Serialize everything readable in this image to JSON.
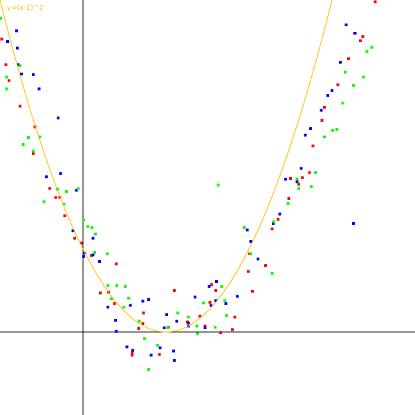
{
  "chart_data": {
    "type": "scatter",
    "xlim": [
      -1,
      4
    ],
    "ylim": [
      -1,
      4
    ],
    "grid": false,
    "curve": {
      "label": "y=(x-1)^2",
      "color": "#ffbf00",
      "x_range": [
        -1,
        4
      ]
    },
    "series": [
      {
        "color": "#ff0000",
        "points": [
          [
            -0.98,
            3.53
          ],
          [
            -0.93,
            3.22
          ],
          [
            -0.89,
            3.03
          ],
          [
            -0.76,
            2.72
          ],
          [
            -0.6,
            2.15
          ],
          [
            -0.58,
            2.47
          ],
          [
            -0.4,
            1.73
          ],
          [
            -0.33,
            1.62
          ],
          [
            -0.28,
            1.62
          ],
          [
            -0.22,
            1.4
          ],
          [
            -0.1,
            1.13
          ],
          [
            -0.02,
            1.07
          ],
          [
            0.1,
            0.92
          ],
          [
            0.21,
            0.47
          ],
          [
            0.31,
            0.48
          ],
          [
            0.38,
            0.34
          ],
          [
            0.4,
            0.82
          ],
          [
            0.59,
            -0.25
          ],
          [
            0.59,
            -0.28
          ],
          [
            0.67,
            0.04
          ],
          [
            0.72,
            0.1
          ],
          [
            0.73,
            0.23
          ],
          [
            0.92,
            -0.27
          ],
          [
            1.03,
            0.06
          ],
          [
            1.1,
            0.5
          ],
          [
            1.26,
            0.12
          ],
          [
            1.41,
            0.19
          ],
          [
            1.47,
            0.07
          ],
          [
            1.53,
            0.36
          ],
          [
            1.55,
            0.57
          ],
          [
            1.6,
            0.5
          ],
          [
            1.66,
            -0.01
          ],
          [
            1.8,
            0.03
          ],
          [
            1.83,
            0.18
          ],
          [
            1.99,
            0.73
          ],
          [
            2.01,
            0.94
          ],
          [
            2.04,
            0.49
          ],
          [
            2.2,
            0.8
          ],
          [
            2.28,
            1.24
          ],
          [
            2.35,
            1.36
          ],
          [
            2.48,
            1.61
          ],
          [
            2.5,
            1.85
          ],
          [
            2.6,
            1.78
          ],
          [
            2.64,
            1.86
          ],
          [
            2.73,
            1.92
          ],
          [
            2.77,
            2.24
          ],
          [
            2.88,
            2.55
          ],
          [
            2.91,
            2.71
          ],
          [
            3.07,
            2.98
          ],
          [
            3.2,
            3.29
          ],
          [
            3.27,
            3.6
          ],
          [
            3.34,
            3.51
          ],
          [
            3.37,
            3.56
          ],
          [
            3.52,
            3.98
          ]
        ]
      },
      {
        "color": "#0000ff",
        "points": [
          [
            -0.91,
            3.5
          ],
          [
            -0.8,
            3.63
          ],
          [
            -0.79,
            3.42
          ],
          [
            -0.78,
            3.22
          ],
          [
            -0.74,
            3.11
          ],
          [
            -0.6,
            3.1
          ],
          [
            -0.53,
            2.93
          ],
          [
            -0.44,
            1.87
          ],
          [
            -0.3,
            2.58
          ],
          [
            -0.27,
            1.91
          ],
          [
            -0.12,
            1.22
          ],
          [
            -0.08,
            1.71
          ],
          [
            0.02,
            0.95
          ],
          [
            0.01,
            0.91
          ],
          [
            0.12,
            1.13
          ],
          [
            0.12,
            0.93
          ],
          [
            0.2,
            0.85
          ],
          [
            0.3,
            0.3
          ],
          [
            0.39,
            0.14
          ],
          [
            0.4,
            0.01
          ],
          [
            0.53,
            -0.18
          ],
          [
            0.57,
            0.32
          ],
          [
            0.6,
            -0.22
          ],
          [
            0.72,
            0.37
          ],
          [
            0.79,
            0.39
          ],
          [
            0.82,
            -0.28
          ],
          [
            0.93,
            -0.19
          ],
          [
            0.98,
            0.05
          ],
          [
            1.01,
            0.21
          ],
          [
            1.09,
            -0.23
          ],
          [
            1.1,
            -0.34
          ],
          [
            1.13,
            0.13
          ],
          [
            1.27,
            0.07
          ],
          [
            1.27,
            0.11
          ],
          [
            1.35,
            0.42
          ],
          [
            1.47,
            0.05
          ],
          [
            1.52,
            0.55
          ],
          [
            1.54,
            0.32
          ],
          [
            1.6,
            0.38
          ],
          [
            1.61,
            0.61
          ],
          [
            1.72,
            0.34
          ],
          [
            1.86,
            0.43
          ],
          [
            1.98,
            1.23
          ],
          [
            2.02,
            1.09
          ],
          [
            2.11,
            0.88
          ],
          [
            2.29,
            1.31
          ],
          [
            2.37,
            1.42
          ],
          [
            2.44,
            1.84
          ],
          [
            2.58,
            1.81
          ],
          [
            2.63,
            1.97
          ],
          [
            2.68,
            2.37
          ],
          [
            2.74,
            2.45
          ],
          [
            2.87,
            2.67
          ],
          [
            2.95,
            2.85
          ],
          [
            3.0,
            2.91
          ],
          [
            3.1,
            3.25
          ],
          [
            3.17,
            3.7
          ],
          [
            3.28,
            3.6
          ],
          [
            3.26,
            1.31
          ]
        ]
      },
      {
        "color": "#00ff00",
        "points": [
          [
            -0.99,
            3.78
          ],
          [
            -0.92,
            2.93
          ],
          [
            -0.92,
            3.07
          ],
          [
            -0.76,
            3.21
          ],
          [
            -0.72,
            2.26
          ],
          [
            -0.66,
            2.34
          ],
          [
            -0.6,
            2.18
          ],
          [
            -0.52,
            2.35
          ],
          [
            -0.47,
            1.57
          ],
          [
            -0.31,
            1.72
          ],
          [
            -0.23,
            1.54
          ],
          [
            -0.2,
            1.69
          ],
          [
            -0.06,
            1.73
          ],
          [
            0.01,
            1.35
          ],
          [
            0.06,
            1.27
          ],
          [
            0.11,
            1.26
          ],
          [
            0.14,
            0.96
          ],
          [
            0.15,
            1.18
          ],
          [
            0.29,
            0.94
          ],
          [
            0.3,
            0.56
          ],
          [
            0.34,
            0.4
          ],
          [
            0.41,
            0.56
          ],
          [
            0.49,
            0.3
          ],
          [
            0.51,
            0.55
          ],
          [
            0.55,
            0.41
          ],
          [
            0.68,
            0.13
          ],
          [
            0.74,
            -0.08
          ],
          [
            0.79,
            -0.45
          ],
          [
            0.9,
            -0.16
          ],
          [
            1.02,
            0.05
          ],
          [
            1.14,
            0.23
          ],
          [
            1.27,
            0.18
          ],
          [
            1.38,
            -0.02
          ],
          [
            1.37,
            0.07
          ],
          [
            1.45,
            0.35
          ],
          [
            1.59,
            0.06
          ],
          [
            1.71,
            0.38
          ],
          [
            1.63,
            1.77
          ],
          [
            1.67,
            0.55
          ],
          [
            1.73,
            0.2
          ],
          [
            1.94,
            1.26
          ],
          [
            2.02,
            0.94
          ],
          [
            2.28,
            0.71
          ],
          [
            2.3,
            1.33
          ],
          [
            2.47,
            1.55
          ],
          [
            2.58,
            1.84
          ],
          [
            2.6,
            1.73
          ],
          [
            2.75,
            1.75
          ],
          [
            2.8,
            1.92
          ],
          [
            2.91,
            2.35
          ],
          [
            3.01,
            2.43
          ],
          [
            3.06,
            2.44
          ],
          [
            3.13,
            2.76
          ],
          [
            3.16,
            3.13
          ],
          [
            3.26,
            2.97
          ],
          [
            3.38,
            3.07
          ],
          [
            3.42,
            3.38
          ],
          [
            3.48,
            3.43
          ]
        ]
      }
    ]
  }
}
